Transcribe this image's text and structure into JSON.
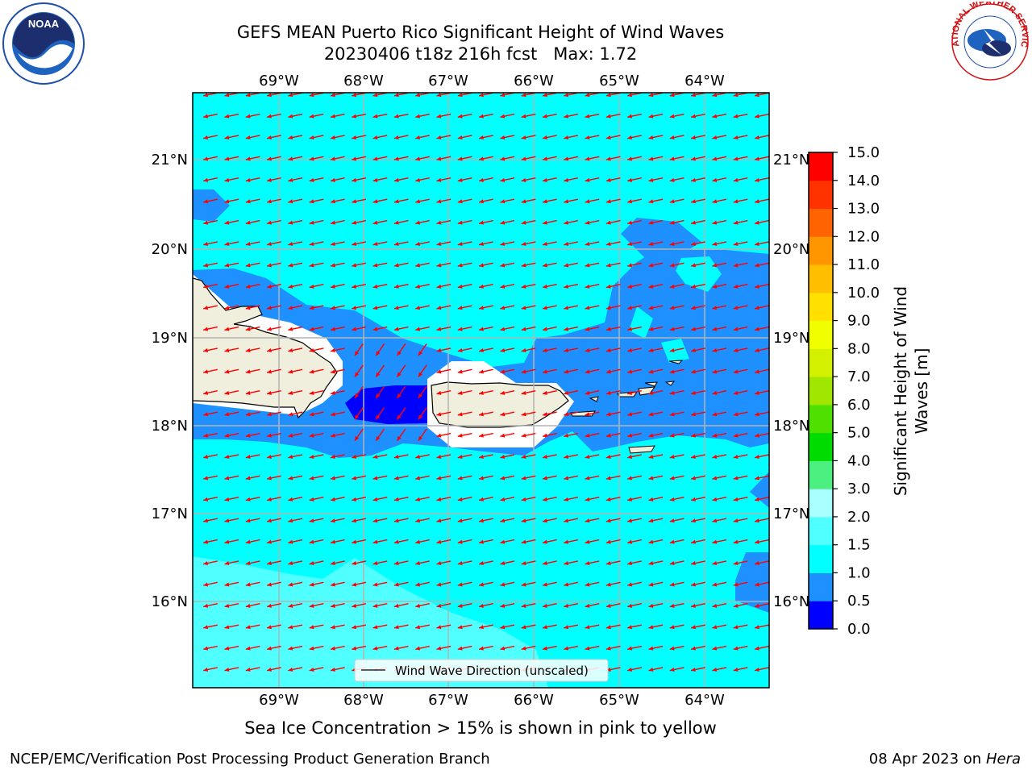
{
  "title": {
    "line1": "GEFS MEAN Puerto Rico Significant Height of Wind Waves",
    "line2_date": "20230406 t18z 216h fcst",
    "line2_max": "Max: 1.72"
  },
  "subtitle": "Sea Ice Concentration > 15% is shown in pink to yellow",
  "footer": {
    "left": "NCEP/EMC/Verification Post Processing Product Generation Branch",
    "right_date": "08 Apr 2023 on ",
    "right_machine": "Hera"
  },
  "logos": {
    "noaa_text": "NOAA",
    "nws_text": "NATIONAL WEATHER SERVICE"
  },
  "map": {
    "lon_labels": [
      "69°W",
      "68°W",
      "67°W",
      "66°W",
      "65°W",
      "64°W"
    ],
    "lat_labels": [
      "21°N",
      "20°N",
      "19°N",
      "18°N",
      "17°N",
      "16°N"
    ],
    "legend": "Wind Wave Direction (unscaled)",
    "ocean_color": "#00ffff",
    "land_color": "#f0eedc",
    "arrow_color": "#ff0000"
  },
  "colorbar": {
    "label": "Significant Height of Wind Waves [m]",
    "label_line1": "Significant Height of Wind",
    "label_line2": "Waves [m]",
    "ticks": [
      "0.0",
      "0.5",
      "1.0",
      "1.5",
      "2.0",
      "3.0",
      "4.0",
      "5.0",
      "6.0",
      "7.0",
      "8.0",
      "9.0",
      "10.0",
      "11.0",
      "12.0",
      "13.0",
      "14.0",
      "15.0"
    ],
    "colors": [
      "#0000ff",
      "#1e90ff",
      "#00ffff",
      "#50ffff",
      "#aaffff",
      "#4cf080",
      "#00dc00",
      "#50e000",
      "#a0e600",
      "#d2f000",
      "#f0ff00",
      "#ffe000",
      "#ffbe00",
      "#ff9600",
      "#ff6400",
      "#ff3200",
      "#ff0000"
    ]
  }
}
